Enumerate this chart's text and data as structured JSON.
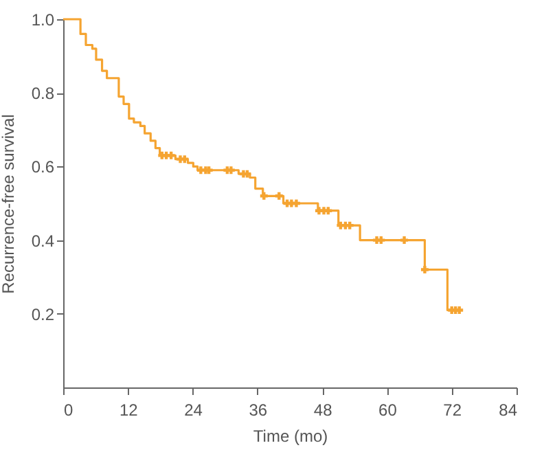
{
  "chart_data": {
    "type": "step",
    "xlabel": "Time (mo)",
    "ylabel": "Recurrence-free survival",
    "xlim": [
      0,
      84
    ],
    "xticks": [
      0,
      12,
      24,
      36,
      48,
      60,
      72,
      84
    ],
    "ylim": [
      0,
      1
    ],
    "yticks": [
      0.2,
      0.4,
      0.6,
      0.8,
      {
        "value": 1,
        "label": "1.0"
      }
    ],
    "grid": false,
    "series": [
      {
        "type": "step",
        "color": "#f5a431",
        "x": [
          0,
          3.2,
          4.2,
          5.4,
          6.1,
          7.2,
          8.1,
          10.3,
          11.2,
          12.2,
          13.1,
          14.3,
          15.1,
          16.2,
          17.1,
          17.9,
          20.8,
          23.1,
          24.1,
          24.9,
          32.5,
          34.6,
          35.6,
          37.0,
          40.8,
          47.2,
          51.0,
          55.0,
          67.0,
          71.2,
          73.4
        ],
        "values": [
          1.0,
          0.96,
          0.93,
          0.92,
          0.89,
          0.86,
          0.84,
          0.79,
          0.77,
          0.73,
          0.72,
          0.71,
          0.69,
          0.67,
          0.65,
          0.63,
          0.62,
          0.61,
          0.6,
          0.59,
          0.58,
          0.57,
          0.54,
          0.52,
          0.5,
          0.48,
          0.44,
          0.4,
          0.32,
          0.21,
          0.21
        ]
      },
      {
        "type": "scatter",
        "marker": "cross",
        "color": "#f5a431",
        "x": [
          18.3,
          19.1,
          20.0,
          21.7,
          22.5,
          25.5,
          26.4,
          27.0,
          30.4,
          31.1,
          33.4,
          34.1,
          37.2,
          40.0,
          41.5,
          42.3,
          43.2,
          47.4,
          48.3,
          49.1,
          51.4,
          52.3,
          53.1,
          58.1,
          58.9,
          63.2,
          67.0,
          72.0,
          72.7,
          73.4
        ],
        "values": [
          0.63,
          0.63,
          0.63,
          0.62,
          0.62,
          0.59,
          0.59,
          0.59,
          0.59,
          0.59,
          0.58,
          0.58,
          0.52,
          0.52,
          0.5,
          0.5,
          0.5,
          0.48,
          0.48,
          0.48,
          0.44,
          0.44,
          0.44,
          0.4,
          0.4,
          0.4,
          0.32,
          0.21,
          0.21,
          0.21
        ]
      }
    ]
  }
}
